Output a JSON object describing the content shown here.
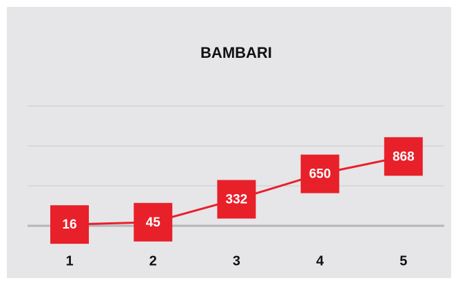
{
  "chart_data": {
    "type": "line",
    "title": "BAMBARI",
    "categories": [
      "1",
      "2",
      "3",
      "4",
      "5"
    ],
    "values": [
      16,
      45,
      332,
      650,
      868
    ],
    "color": "#e8202a",
    "ylim": [
      0,
      1500
    ],
    "yticks": [
      0,
      500,
      1000,
      1500
    ],
    "grid": true
  }
}
